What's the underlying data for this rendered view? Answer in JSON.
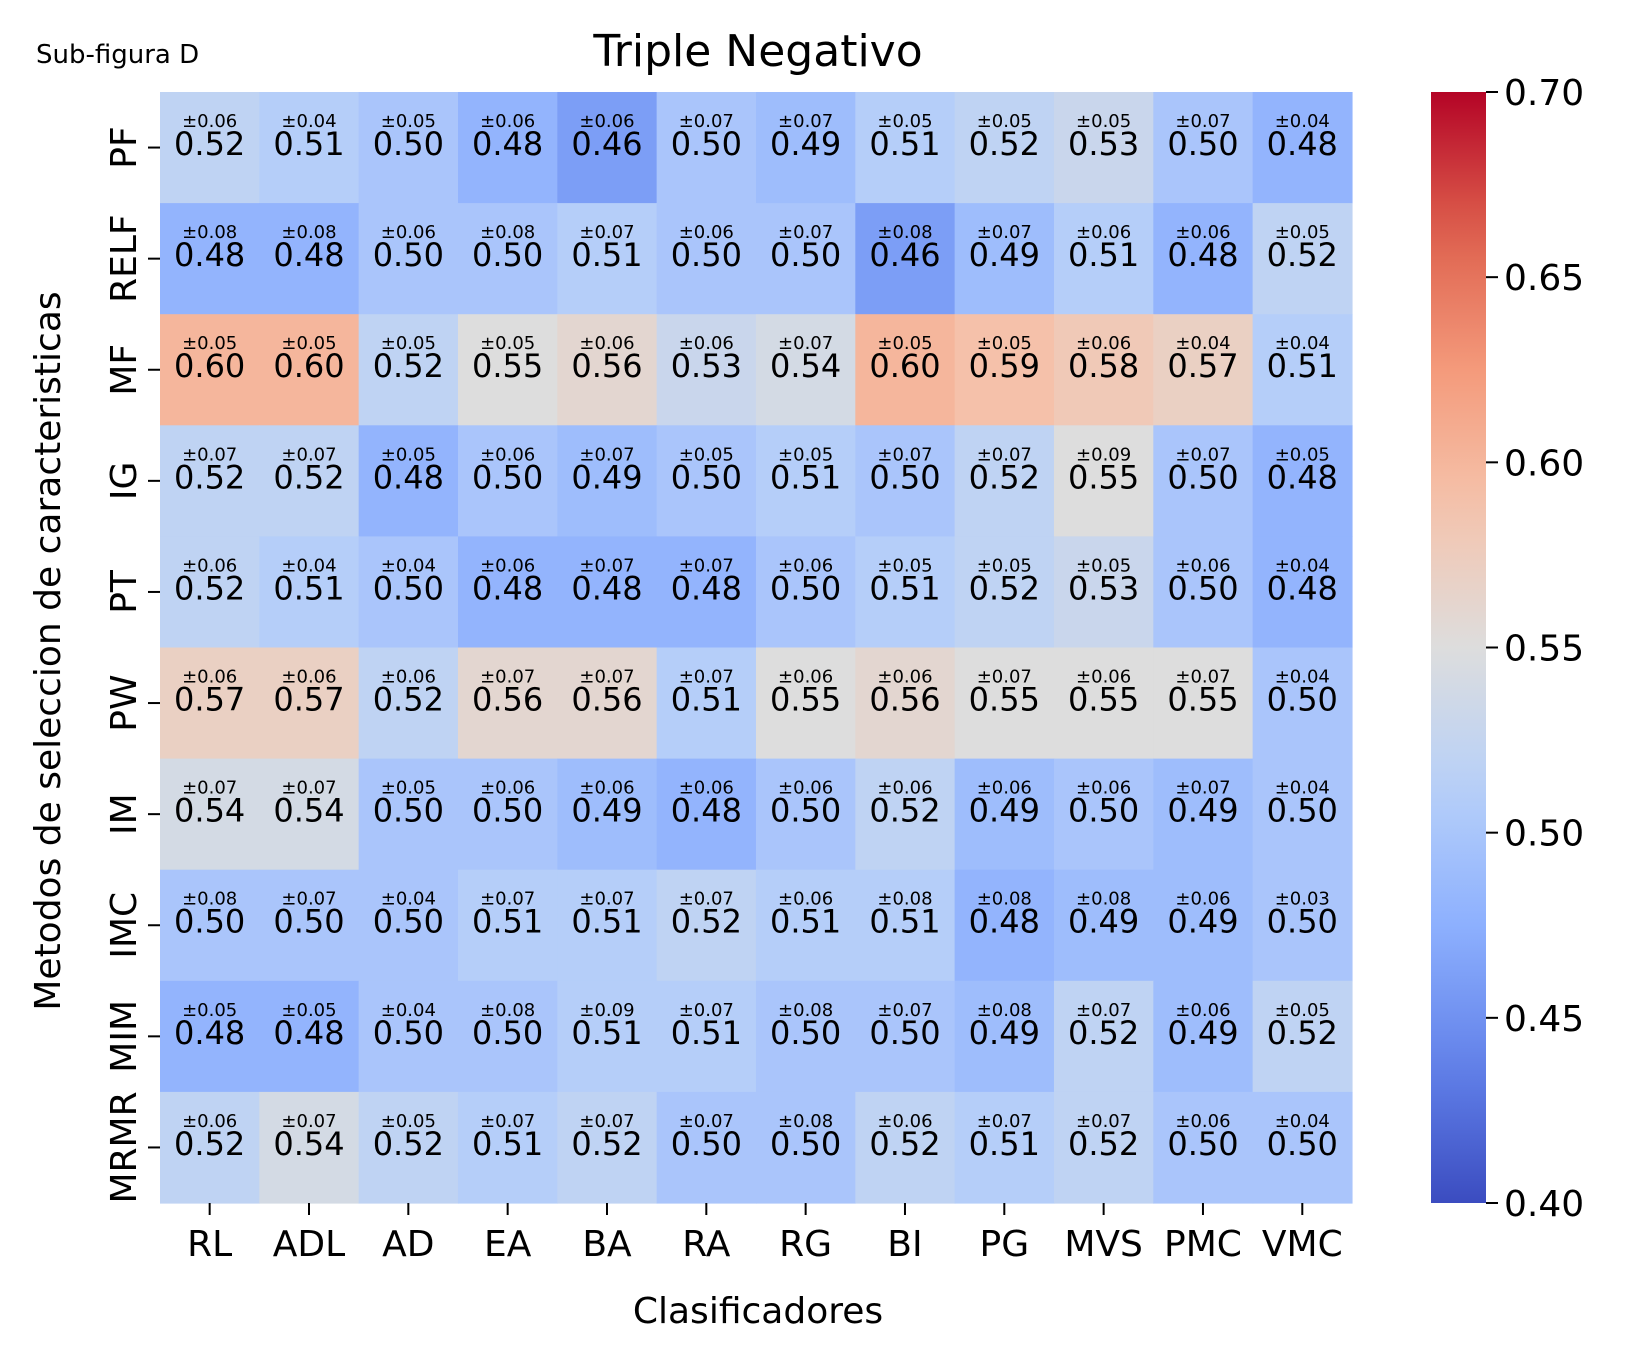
{
  "subfigure_label": "Sub-figura D",
  "chart_data": {
    "type": "heatmap",
    "title": "Triple Negativo",
    "xlabel": "Clasificadores",
    "ylabel": "Metodos de seleccion de caracteristicas",
    "columns": [
      "RL",
      "ADL",
      "AD",
      "EA",
      "BA",
      "RA",
      "RG",
      "BI",
      "PG",
      "MVS",
      "PMC",
      "VMC"
    ],
    "rows": [
      "PF",
      "RELF",
      "MF",
      "IG",
      "PT",
      "PW",
      "IM",
      "IMC",
      "MIM",
      "MRMR"
    ],
    "values": [
      [
        "0.52",
        "0.51",
        "0.50",
        "0.48",
        "0.46",
        "0.50",
        "0.49",
        "0.51",
        "0.52",
        "0.53",
        "0.50",
        "0.48"
      ],
      [
        "0.48",
        "0.48",
        "0.50",
        "0.50",
        "0.51",
        "0.50",
        "0.50",
        "0.46",
        "0.49",
        "0.51",
        "0.48",
        "0.52"
      ],
      [
        "0.60",
        "0.60",
        "0.52",
        "0.55",
        "0.56",
        "0.53",
        "0.54",
        "0.60",
        "0.59",
        "0.58",
        "0.57",
        "0.51"
      ],
      [
        "0.52",
        "0.52",
        "0.48",
        "0.50",
        "0.49",
        "0.50",
        "0.51",
        "0.50",
        "0.52",
        "0.55",
        "0.50",
        "0.48"
      ],
      [
        "0.52",
        "0.51",
        "0.50",
        "0.48",
        "0.48",
        "0.48",
        "0.50",
        "0.51",
        "0.52",
        "0.53",
        "0.50",
        "0.48"
      ],
      [
        "0.57",
        "0.57",
        "0.52",
        "0.56",
        "0.56",
        "0.51",
        "0.55",
        "0.56",
        "0.55",
        "0.55",
        "0.55",
        "0.50"
      ],
      [
        "0.54",
        "0.54",
        "0.50",
        "0.50",
        "0.49",
        "0.48",
        "0.50",
        "0.52",
        "0.49",
        "0.50",
        "0.49",
        "0.50"
      ],
      [
        "0.50",
        "0.50",
        "0.50",
        "0.51",
        "0.51",
        "0.52",
        "0.51",
        "0.51",
        "0.48",
        "0.49",
        "0.49",
        "0.50"
      ],
      [
        "0.48",
        "0.48",
        "0.50",
        "0.50",
        "0.51",
        "0.51",
        "0.50",
        "0.50",
        "0.49",
        "0.52",
        "0.49",
        "0.52"
      ],
      [
        "0.52",
        "0.54",
        "0.52",
        "0.51",
        "0.52",
        "0.50",
        "0.50",
        "0.52",
        "0.51",
        "0.52",
        "0.50",
        "0.50"
      ]
    ],
    "std": [
      [
        "±0.06",
        "±0.04",
        "±0.05",
        "±0.06",
        "±0.06",
        "±0.07",
        "±0.07",
        "±0.05",
        "±0.05",
        "±0.05",
        "±0.07",
        "±0.04"
      ],
      [
        "±0.08",
        "±0.08",
        "±0.06",
        "±0.08",
        "±0.07",
        "±0.06",
        "±0.07",
        "±0.08",
        "±0.07",
        "±0.06",
        "±0.06",
        "±0.05"
      ],
      [
        "±0.05",
        "±0.05",
        "±0.05",
        "±0.05",
        "±0.06",
        "±0.06",
        "±0.07",
        "±0.05",
        "±0.05",
        "±0.06",
        "±0.04",
        "±0.04"
      ],
      [
        "±0.07",
        "±0.07",
        "±0.05",
        "±0.06",
        "±0.07",
        "±0.05",
        "±0.05",
        "±0.07",
        "±0.07",
        "±0.09",
        "±0.07",
        "±0.05"
      ],
      [
        "±0.06",
        "±0.04",
        "±0.04",
        "±0.06",
        "±0.07",
        "±0.07",
        "±0.06",
        "±0.05",
        "±0.05",
        "±0.05",
        "±0.06",
        "±0.04"
      ],
      [
        "±0.06",
        "±0.06",
        "±0.06",
        "±0.07",
        "±0.07",
        "±0.07",
        "±0.06",
        "±0.06",
        "±0.07",
        "±0.06",
        "±0.07",
        "±0.04"
      ],
      [
        "±0.07",
        "±0.07",
        "±0.05",
        "±0.06",
        "±0.06",
        "±0.06",
        "±0.06",
        "±0.06",
        "±0.06",
        "±0.06",
        "±0.07",
        "±0.04"
      ],
      [
        "±0.08",
        "±0.07",
        "±0.04",
        "±0.07",
        "±0.07",
        "±0.07",
        "±0.06",
        "±0.08",
        "±0.08",
        "±0.08",
        "±0.06",
        "±0.03"
      ],
      [
        "±0.05",
        "±0.05",
        "±0.04",
        "±0.08",
        "±0.09",
        "±0.07",
        "±0.08",
        "±0.07",
        "±0.08",
        "±0.07",
        "±0.06",
        "±0.05"
      ],
      [
        "±0.06",
        "±0.07",
        "±0.05",
        "±0.07",
        "±0.07",
        "±0.07",
        "±0.08",
        "±0.06",
        "±0.07",
        "±0.07",
        "±0.06",
        "±0.04"
      ]
    ],
    "colorscale": "coolwarm",
    "vmin": 0.4,
    "vmax": 0.7,
    "colorbar_ticks": [
      "0.40",
      "0.45",
      "0.50",
      "0.55",
      "0.60",
      "0.65",
      "0.70"
    ]
  }
}
